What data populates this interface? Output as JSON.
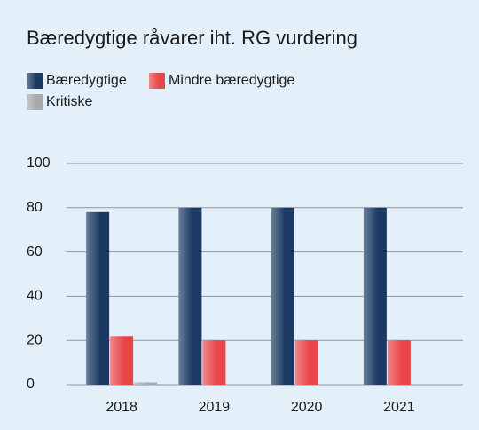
{
  "chart_data": {
    "type": "bar",
    "title": "Bæredygtige råvarer iht. RG vurdering",
    "categories": [
      "2018",
      "2019",
      "2020",
      "2021"
    ],
    "series": [
      {
        "name": "Bæredygtige",
        "color": "#1b3a63",
        "values": [
          78,
          80,
          80,
          80
        ]
      },
      {
        "name": "Mindre bæredygtige",
        "color": "#e8474a",
        "values": [
          22,
          20,
          20,
          20
        ]
      },
      {
        "name": "Kritiske",
        "color": "#a9a9a9",
        "values": [
          1,
          0,
          0,
          0
        ]
      }
    ],
    "ylim": [
      0,
      100
    ],
    "yticks": [
      0,
      20,
      40,
      60,
      80,
      100
    ],
    "grid": true
  }
}
